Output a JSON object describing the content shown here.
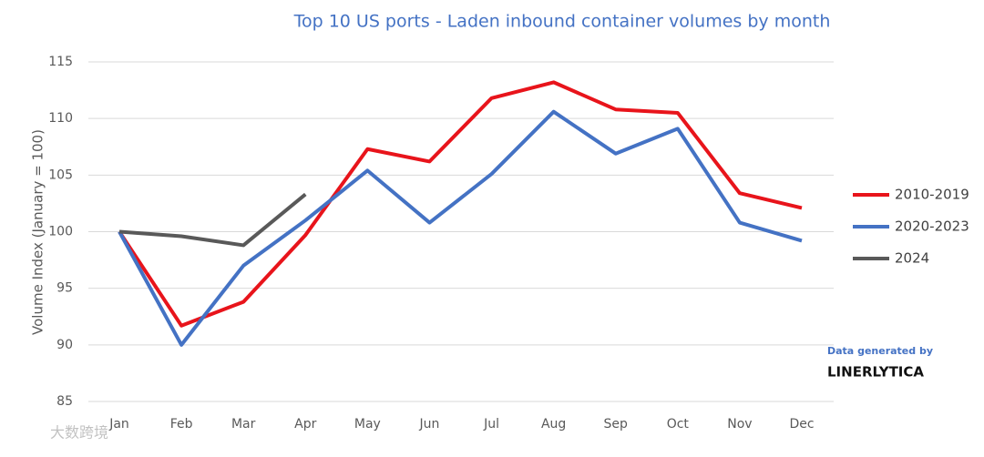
{
  "chart_data": {
    "type": "line",
    "title": "Top 10 US ports - Laden inbound container volumes by month",
    "ylabel": "Volume Index (January = 100)",
    "categories": [
      "Jan",
      "Feb",
      "Mar",
      "Apr",
      "May",
      "Jun",
      "Jul",
      "Aug",
      "Sep",
      "Oct",
      "Nov",
      "Dec"
    ],
    "series": [
      {
        "name": "2010-2019",
        "color": "#e8141b",
        "values": [
          100,
          91.7,
          93.8,
          99.7,
          107.3,
          106.2,
          111.8,
          113.2,
          110.8,
          110.5,
          103.4,
          102.1
        ]
      },
      {
        "name": "2020-2023",
        "color": "#4472c4",
        "values": [
          100,
          90.0,
          97.0,
          101.0,
          105.4,
          100.8,
          105.1,
          110.6,
          106.9,
          109.1,
          100.8,
          99.2
        ]
      },
      {
        "name": "2024",
        "color": "#595959",
        "values": [
          100,
          99.6,
          98.8,
          103.3,
          null,
          null,
          null,
          null,
          null,
          null,
          null,
          null
        ]
      }
    ],
    "ylim": [
      85,
      115
    ],
    "yticks": [
      85,
      90,
      95,
      100,
      105,
      110,
      115
    ],
    "grid": true,
    "legend": "right",
    "annotations": [
      "Data generated by",
      "LINERLYTICA"
    ],
    "watermark": "大数跨境"
  }
}
